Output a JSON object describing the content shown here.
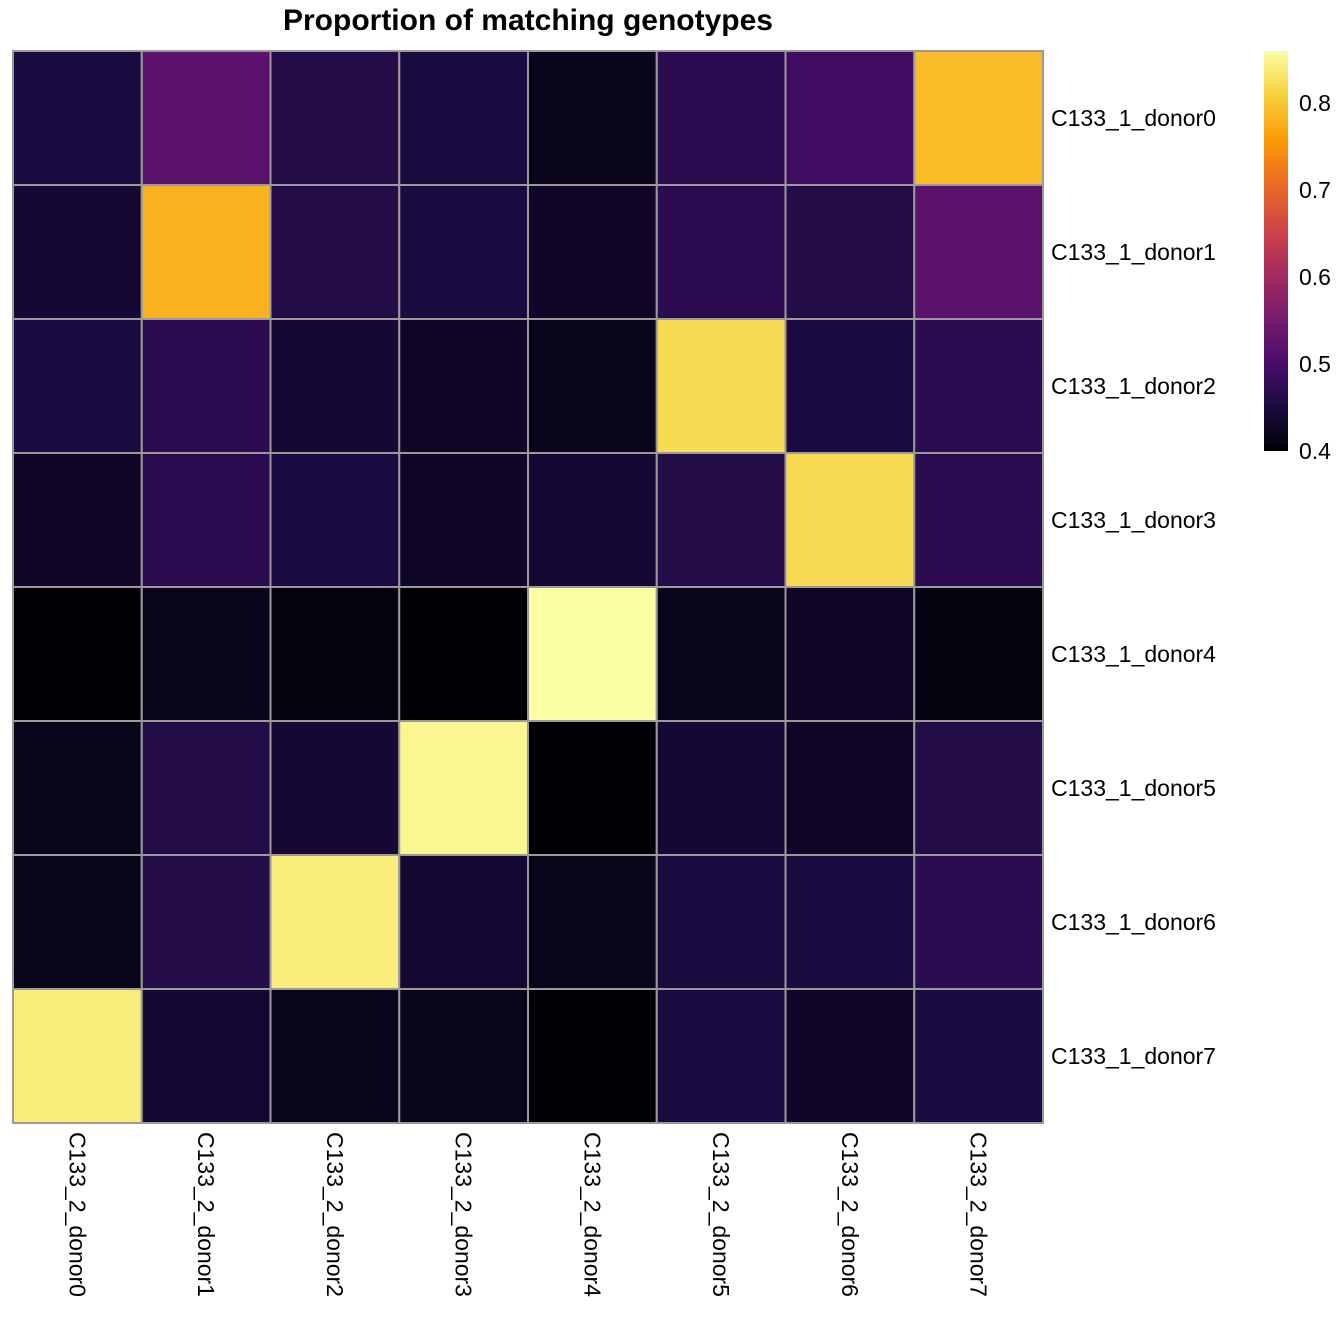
{
  "chart_data": {
    "type": "heatmap",
    "title": "Proportion of matching genotypes",
    "rows": [
      "C133_1_donor0",
      "C133_1_donor1",
      "C133_1_donor2",
      "C133_1_donor3",
      "C133_1_donor4",
      "C133_1_donor5",
      "C133_1_donor6",
      "C133_1_donor7"
    ],
    "columns": [
      "C133_2_donor0",
      "C133_2_donor1",
      "C133_2_donor2",
      "C133_2_donor3",
      "C133_2_donor4",
      "C133_2_donor5",
      "C133_2_donor6",
      "C133_2_donor7"
    ],
    "values": [
      [
        0.45,
        0.52,
        0.46,
        0.45,
        0.42,
        0.47,
        0.49,
        0.79
      ],
      [
        0.44,
        0.78,
        0.46,
        0.45,
        0.43,
        0.47,
        0.46,
        0.52
      ],
      [
        0.45,
        0.47,
        0.44,
        0.43,
        0.42,
        0.82,
        0.45,
        0.47
      ],
      [
        0.43,
        0.47,
        0.45,
        0.43,
        0.44,
        0.46,
        0.82,
        0.47
      ],
      [
        0.4,
        0.42,
        0.41,
        0.4,
        0.86,
        0.42,
        0.43,
        0.41
      ],
      [
        0.42,
        0.46,
        0.44,
        0.85,
        0.4,
        0.44,
        0.43,
        0.46
      ],
      [
        0.42,
        0.46,
        0.84,
        0.44,
        0.42,
        0.45,
        0.45,
        0.47
      ],
      [
        0.84,
        0.44,
        0.42,
        0.42,
        0.4,
        0.45,
        0.43,
        0.45
      ]
    ],
    "color_scale": {
      "name": "inferno",
      "min": 0.4,
      "max": 0.86,
      "ticks": [
        "0.4",
        "0.5",
        "0.6",
        "0.7",
        "0.8"
      ],
      "stops": [
        "#000004",
        "#1b0c41",
        "#4a0c6b",
        "#781c6d",
        "#a52c60",
        "#cf4446",
        "#ed6925",
        "#fb9b06",
        "#f7d13d",
        "#fcffa4"
      ]
    },
    "legend_position": "top-right",
    "cell_border_color": "#9a9a9a"
  }
}
